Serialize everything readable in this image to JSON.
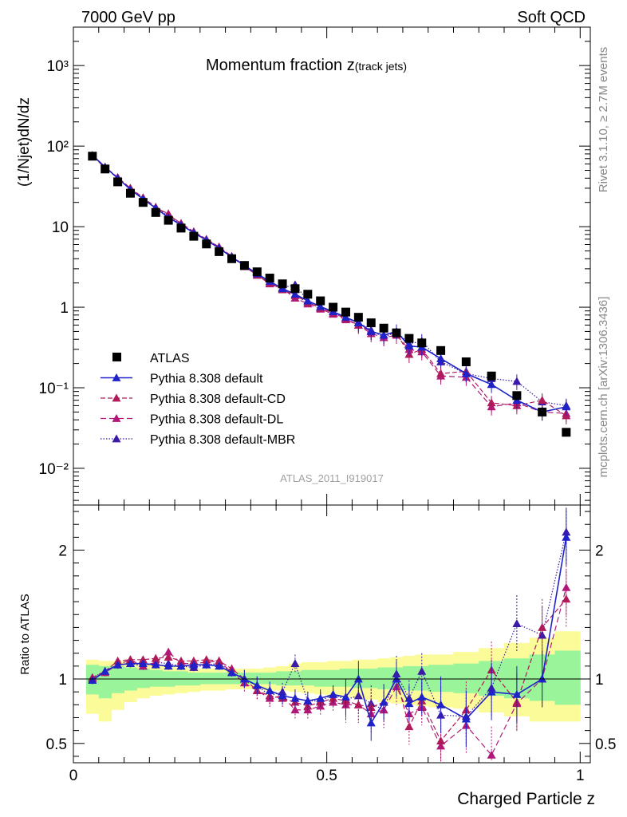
{
  "header": {
    "energy": "7000 GeV pp",
    "process": "Soft QCD",
    "side_top": "Rivet 3.1.10, ≥ 2.7M events",
    "side_bottom": "mcplots.cern.ch [arXiv:1306.3436]"
  },
  "colors": {
    "atlas": "#000000",
    "default": "#1e22c8",
    "cd": "#b0195a",
    "dl": "#b0197a",
    "mbr": "#3a1aa6",
    "band_yellow": "#fbfb9a",
    "band_green": "#9af59a"
  },
  "chart_data": [
    {
      "type": "scatter",
      "title": "Momentum fraction z",
      "title_sub": "(track jets)",
      "ylabel": "(1/Njet)dN/dz",
      "analysis_tag": "ATLAS_2011_I919017",
      "yscale": "log",
      "xlim": [
        0,
        1.02
      ],
      "ylim": [
        0.0035,
        3000
      ],
      "ytick_labels": [
        "10⁻²",
        "10⁻¹",
        "1",
        "10",
        "10²",
        "10³"
      ],
      "ytick_values": [
        0.01,
        0.1,
        1,
        10,
        100,
        1000
      ],
      "legend_position": "lower-left",
      "x": [
        0.0375,
        0.0625,
        0.0875,
        0.1125,
        0.1375,
        0.1625,
        0.1875,
        0.2125,
        0.2375,
        0.2625,
        0.2875,
        0.3125,
        0.3375,
        0.3625,
        0.3875,
        0.4125,
        0.4375,
        0.4625,
        0.4875,
        0.5125,
        0.5375,
        0.5625,
        0.5875,
        0.6125,
        0.6375,
        0.6625,
        0.6875,
        0.725,
        0.775,
        0.825,
        0.875,
        0.925,
        0.9725
      ],
      "series": [
        {
          "name": "ATLAS",
          "values": [
            75,
            52,
            36,
            26,
            20,
            15,
            12,
            9.6,
            7.6,
            6.1,
            4.9,
            4.0,
            3.3,
            2.75,
            2.3,
            1.95,
            1.7,
            1.45,
            1.2,
            1.0,
            0.87,
            0.75,
            0.64,
            0.55,
            0.48,
            0.41,
            0.36,
            0.29,
            0.21,
            0.14,
            0.08,
            0.05,
            0.028
          ]
        },
        {
          "name": "Pythia 8.308 default",
          "values": [
            77,
            55,
            40,
            29,
            22,
            17,
            13,
            10.5,
            8.4,
            6.8,
            5.4,
            4.2,
            3.3,
            2.6,
            2.1,
            1.7,
            1.45,
            1.2,
            1.02,
            0.88,
            0.75,
            0.64,
            0.5,
            0.45,
            0.5,
            0.33,
            0.32,
            0.23,
            0.15,
            0.11,
            0.07,
            0.05,
            0.058
          ]
        },
        {
          "name": "Pythia 8.308 default-CD",
          "values": [
            76,
            55,
            41,
            30,
            23,
            17.5,
            14,
            11,
            8.7,
            7.0,
            5.6,
            4.3,
            3.3,
            2.5,
            2.0,
            1.65,
            1.4,
            1.15,
            0.98,
            0.85,
            0.72,
            0.6,
            0.5,
            0.45,
            0.48,
            0.26,
            0.3,
            0.15,
            0.16,
            0.065,
            0.06,
            0.07,
            0.045
          ]
        },
        {
          "name": "Pythia 8.308 default-DL",
          "values": [
            75,
            54,
            40,
            30,
            22,
            17,
            14.5,
            10.8,
            8.5,
            6.9,
            5.6,
            4.2,
            3.2,
            2.5,
            1.95,
            1.7,
            1.3,
            1.1,
            0.95,
            0.82,
            0.7,
            0.6,
            0.47,
            0.42,
            0.45,
            0.3,
            0.28,
            0.14,
            0.135,
            0.058,
            0.065,
            0.05,
            0.048
          ]
        },
        {
          "name": "Pythia 8.308 default-MBR",
          "values": [
            76,
            55,
            40,
            29,
            22,
            17,
            13.5,
            10.6,
            8.3,
            6.8,
            5.5,
            4.2,
            3.3,
            2.6,
            2.0,
            1.75,
            1.9,
            1.2,
            1.0,
            0.88,
            0.73,
            0.65,
            0.52,
            0.42,
            0.5,
            0.35,
            0.38,
            0.21,
            0.15,
            0.13,
            0.12,
            0.067,
            0.06
          ]
        }
      ]
    },
    {
      "type": "scatter",
      "ylabel": "Ratio to ATLAS",
      "xlabel": "Charged Particle z",
      "xlim": [
        0,
        1.02
      ],
      "ylim": [
        0.35,
        2.35
      ],
      "ytick_labels": [
        "0.5",
        "1",
        "2"
      ],
      "ytick_values": [
        0.5,
        1,
        2
      ],
      "xtick_labels": [
        "0",
        "0.5",
        "1"
      ],
      "xtick_values": [
        0,
        0.5,
        1
      ],
      "x_edges": [
        0.025,
        0.05,
        0.075,
        0.1,
        0.125,
        0.15,
        0.175,
        0.2,
        0.225,
        0.25,
        0.275,
        0.3,
        0.325,
        0.35,
        0.375,
        0.4,
        0.425,
        0.45,
        0.475,
        0.5,
        0.525,
        0.55,
        0.575,
        0.6,
        0.625,
        0.65,
        0.675,
        0.7,
        0.75,
        0.8,
        0.85,
        0.9,
        0.95,
        1.0
      ],
      "band_yellow": [
        [
          0.73,
          1.15
        ],
        [
          0.67,
          1.14
        ],
        [
          0.76,
          1.14
        ],
        [
          0.82,
          1.13
        ],
        [
          0.85,
          1.12
        ],
        [
          0.87,
          1.11
        ],
        [
          0.88,
          1.1
        ],
        [
          0.89,
          1.09
        ],
        [
          0.9,
          1.08
        ],
        [
          0.91,
          1.08
        ],
        [
          0.91,
          1.08
        ],
        [
          0.92,
          1.08
        ],
        [
          0.92,
          1.08
        ],
        [
          0.92,
          1.08
        ],
        [
          0.91,
          1.09
        ],
        [
          0.91,
          1.1
        ],
        [
          0.9,
          1.12
        ],
        [
          0.89,
          1.13
        ],
        [
          0.88,
          1.13
        ],
        [
          0.87,
          1.14
        ],
        [
          0.86,
          1.14
        ],
        [
          0.85,
          1.15
        ],
        [
          0.84,
          1.15
        ],
        [
          0.82,
          1.16
        ],
        [
          0.81,
          1.17
        ],
        [
          0.8,
          1.18
        ],
        [
          0.79,
          1.19
        ],
        [
          0.78,
          1.19
        ],
        [
          0.77,
          1.21
        ],
        [
          0.74,
          1.24
        ],
        [
          0.71,
          1.28
        ],
        [
          0.67,
          1.32
        ],
        [
          0.67,
          1.37
        ]
      ],
      "band_green": [
        [
          0.88,
          1.11
        ],
        [
          0.85,
          1.1
        ],
        [
          0.89,
          1.1
        ],
        [
          0.91,
          1.09
        ],
        [
          0.93,
          1.08
        ],
        [
          0.94,
          1.07
        ],
        [
          0.94,
          1.06
        ],
        [
          0.95,
          1.06
        ],
        [
          0.95,
          1.05
        ],
        [
          0.96,
          1.05
        ],
        [
          0.96,
          1.05
        ],
        [
          0.96,
          1.05
        ],
        [
          0.96,
          1.05
        ],
        [
          0.96,
          1.05
        ],
        [
          0.96,
          1.05
        ],
        [
          0.95,
          1.06
        ],
        [
          0.95,
          1.06
        ],
        [
          0.95,
          1.07
        ],
        [
          0.94,
          1.07
        ],
        [
          0.94,
          1.07
        ],
        [
          0.94,
          1.08
        ],
        [
          0.93,
          1.08
        ],
        [
          0.93,
          1.08
        ],
        [
          0.92,
          1.09
        ],
        [
          0.92,
          1.09
        ],
        [
          0.91,
          1.1
        ],
        [
          0.91,
          1.1
        ],
        [
          0.9,
          1.11
        ],
        [
          0.89,
          1.12
        ],
        [
          0.87,
          1.14
        ],
        [
          0.85,
          1.16
        ],
        [
          0.83,
          1.19
        ],
        [
          0.8,
          1.22
        ]
      ],
      "series": [
        {
          "name": "Pythia 8.308 default",
          "values": [
            0.99,
            1.06,
            1.11,
            1.12,
            1.12,
            1.11,
            1.1,
            1.1,
            1.11,
            1.11,
            1.1,
            1.05,
            1.0,
            0.95,
            0.91,
            0.87,
            0.85,
            0.83,
            0.85,
            0.88,
            0.86,
            1.0,
            0.66,
            0.82,
            1.0,
            0.81,
            0.86,
            0.8,
            0.69,
            0.9,
            0.88,
            1.0,
            2.1
          ]
        },
        {
          "name": "Pythia 8.308 default-CD",
          "values": [
            1.01,
            1.06,
            1.14,
            1.15,
            1.15,
            1.16,
            1.17,
            1.14,
            1.14,
            1.15,
            1.14,
            1.08,
            1.0,
            0.91,
            0.87,
            0.85,
            0.82,
            0.79,
            0.82,
            0.85,
            0.83,
            0.8,
            0.78,
            0.82,
            1.0,
            0.63,
            0.83,
            0.52,
            0.76,
            1.07,
            0.82,
            1.4,
            1.62
          ]
        },
        {
          "name": "Pythia 8.308 default-DL",
          "values": [
            1.0,
            1.05,
            1.11,
            1.15,
            1.1,
            1.13,
            1.21,
            1.12,
            1.12,
            1.13,
            1.14,
            1.05,
            0.97,
            0.91,
            0.85,
            0.87,
            0.76,
            0.76,
            0.79,
            0.82,
            0.8,
            0.8,
            0.73,
            0.76,
            0.94,
            0.73,
            0.78,
            0.48,
            0.64,
            0.41,
            0.81,
            1.0,
            1.71
          ]
        },
        {
          "name": "Pythia 8.308 default-MBR",
          "values": [
            1.01,
            1.06,
            1.11,
            1.12,
            1.1,
            1.13,
            1.12,
            1.1,
            1.09,
            1.11,
            1.12,
            1.05,
            1.0,
            0.95,
            0.87,
            0.9,
            1.12,
            0.83,
            0.83,
            0.88,
            0.84,
            0.87,
            0.81,
            0.76,
            1.04,
            0.85,
            1.06,
            0.72,
            0.71,
            0.93,
            1.43,
            1.34,
            2.14
          ]
        }
      ]
    }
  ]
}
